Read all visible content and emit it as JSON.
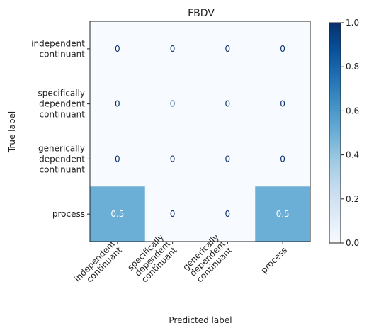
{
  "chart_data": {
    "type": "heatmap",
    "title": "FBDV",
    "xlabel": "Predicted label",
    "ylabel": "True label",
    "rows": [
      [
        "independent",
        "continuant"
      ],
      [
        "specifically",
        "dependent",
        "continuant"
      ],
      [
        "generically",
        "dependent",
        "continuant"
      ],
      [
        "process"
      ]
    ],
    "cols": [
      [
        "independent",
        "continuant"
      ],
      [
        "specifically",
        "dependent",
        "continuant"
      ],
      [
        "generically",
        "dependent",
        "continuant"
      ],
      [
        "process"
      ]
    ],
    "matrix": [
      [
        "0",
        "0",
        "0",
        "0"
      ],
      [
        "0",
        "0",
        "0",
        "0"
      ],
      [
        "0",
        "0",
        "0",
        "0"
      ],
      [
        "0.5",
        "0",
        "0",
        "0.5"
      ]
    ],
    "colorbar": {
      "range": [
        0,
        1
      ],
      "ticks": [
        "0.0",
        "0.2",
        "0.4",
        "0.6",
        "0.8",
        "1.0"
      ],
      "colormap": "Blues"
    },
    "colors": {
      "low": "#f7fbff",
      "mid": "#6baed6",
      "high": "#08306b",
      "text_dark": "#08306b",
      "text_light": "#ffffff"
    }
  }
}
